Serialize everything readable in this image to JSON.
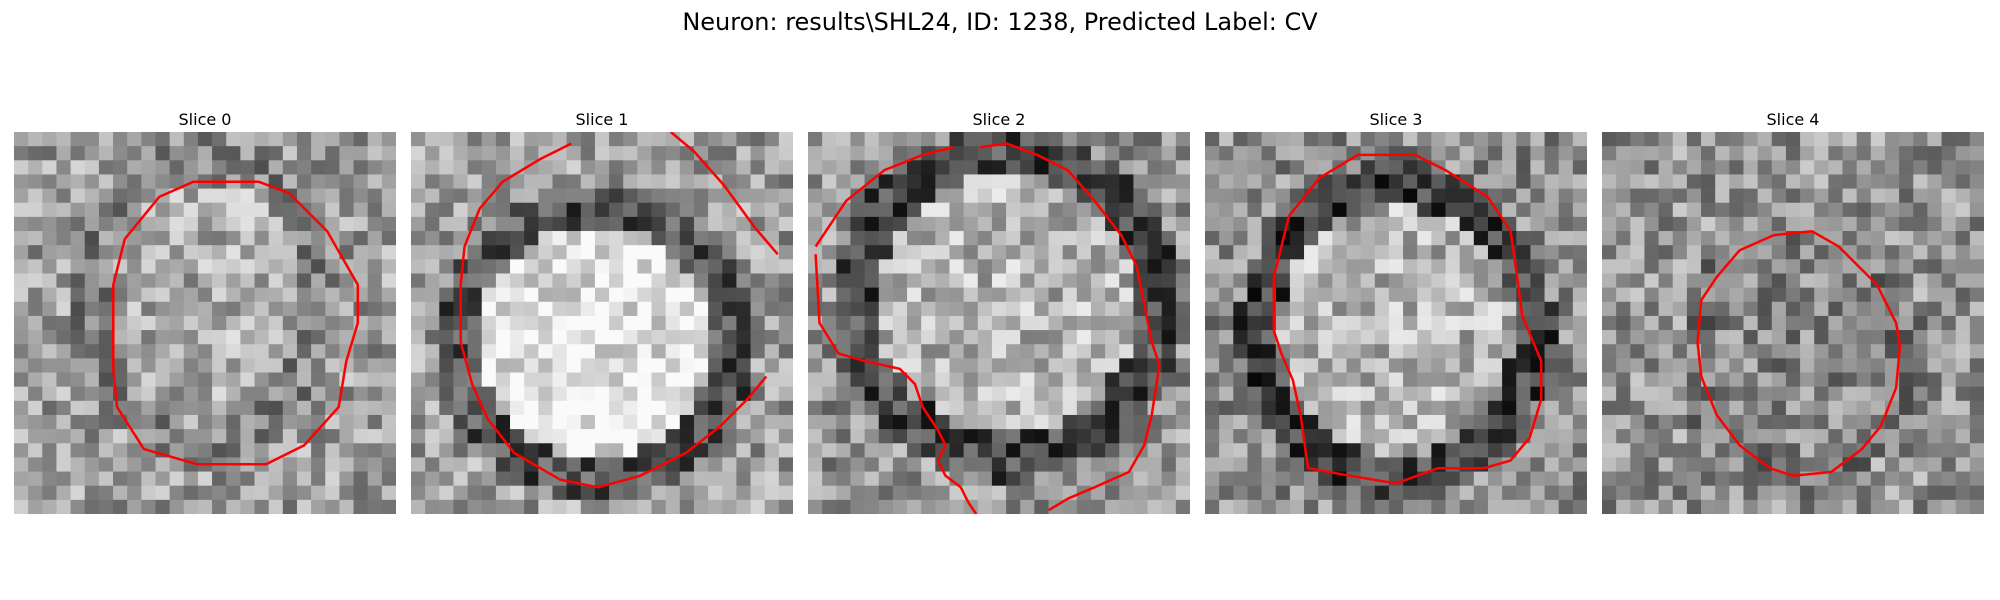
{
  "figure": {
    "title": "Neuron: results\\SHL24, ID: 1238, Predicted Label: CV"
  },
  "panels": [
    {
      "title": "Slice 0",
      "image": "grayscale-microscopy-slice-0",
      "overlay": "red-contour"
    },
    {
      "title": "Slice 1",
      "image": "grayscale-microscopy-slice-1",
      "overlay": "red-contour"
    },
    {
      "title": "Slice 2",
      "image": "grayscale-microscopy-slice-2",
      "overlay": "red-contour"
    },
    {
      "title": "Slice 3",
      "image": "grayscale-microscopy-slice-3",
      "overlay": "red-contour"
    },
    {
      "title": "Slice 4",
      "image": "grayscale-microscopy-slice-4",
      "overlay": "red-contour"
    }
  ],
  "colors": {
    "contour": "#ff0000",
    "background": "#ffffff"
  }
}
